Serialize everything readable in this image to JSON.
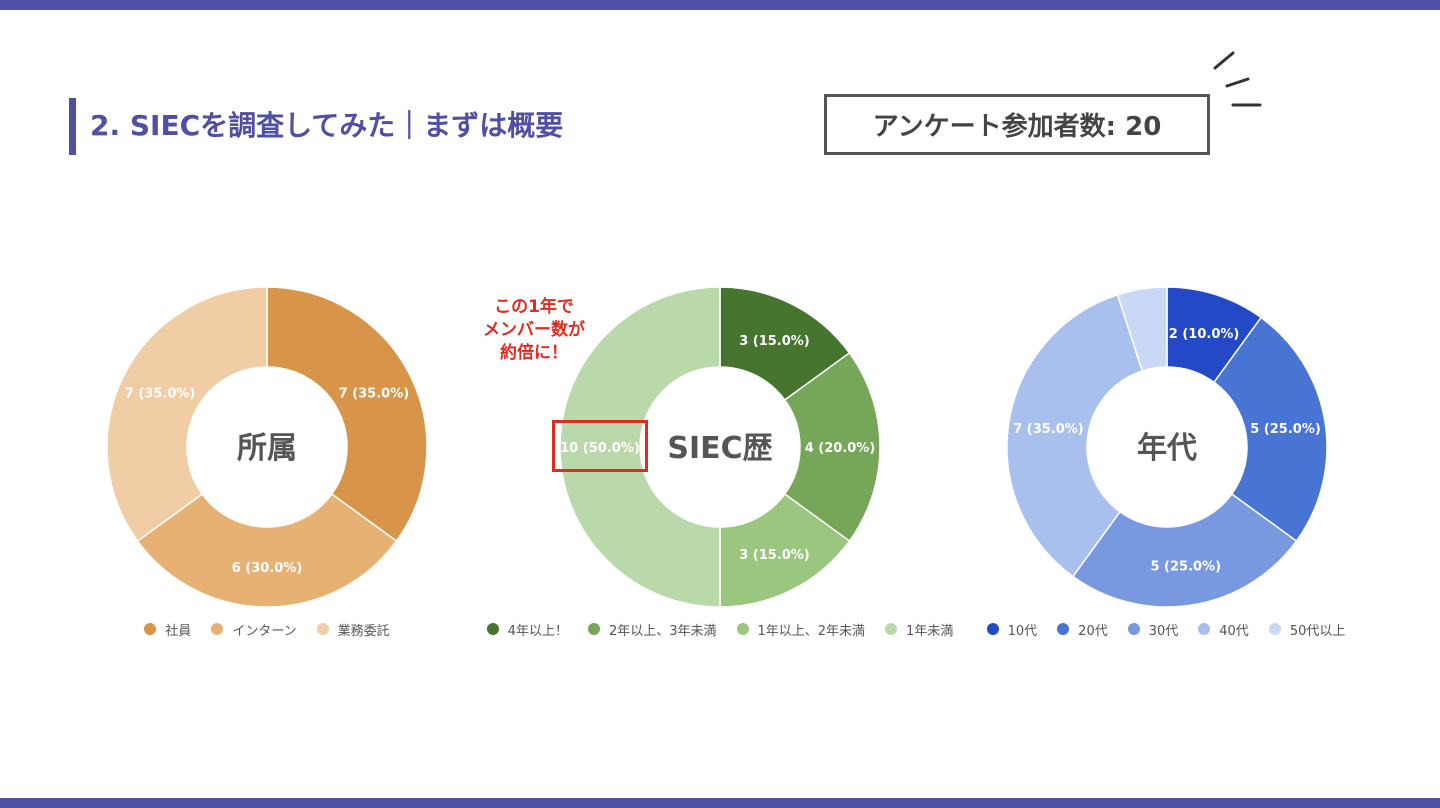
{
  "slide": {
    "title": "2. SIECを調査してみた｜まずは概要",
    "participant_count": "アンケート参加者数: 20",
    "note_lines": [
      "この1年で",
      "メンバー数が",
      "約倍に！"
    ],
    "colors": {
      "accent": "#4f4fa3",
      "note": "#e02b20"
    }
  },
  "chart_data": [
    {
      "type": "pie",
      "donut": true,
      "center_label": "所属",
      "categories": [
        "社員",
        "インターン",
        "業務委託"
      ],
      "values": [
        7,
        6,
        7
      ],
      "data_labels": [
        "7 (35.0%)",
        "6 (30.0%)",
        "7 (35.0%)"
      ],
      "colors": [
        "#d8954a",
        "#e8b174",
        "#f0cda5"
      ],
      "legend_position": "bottom"
    },
    {
      "type": "pie",
      "donut": true,
      "center_label": "SIEC歴",
      "categories": [
        "4年以上！",
        "2年以上、3年未満",
        "1年以上、2年未満",
        "1年未満"
      ],
      "values": [
        3,
        4,
        3,
        10
      ],
      "data_labels": [
        "3 (15.0%)",
        "4 (20.0%)",
        "3 (15.0%)",
        "10 (50.0%)"
      ],
      "colors": [
        "#45752e",
        "#76a758",
        "#9bc680",
        "#b9d9aa"
      ],
      "legend_position": "bottom"
    },
    {
      "type": "pie",
      "donut": true,
      "center_label": "年代",
      "categories": [
        "10代",
        "20代",
        "30代",
        "40代",
        "50代以上"
      ],
      "values": [
        2,
        5,
        5,
        7,
        1
      ],
      "data_labels": [
        "2 (10.0%)",
        "5 (25.0%)",
        "5 (25.0%)",
        "7 (35.0%)",
        ""
      ],
      "colors": [
        "#2349c6",
        "#4874d3",
        "#7899e0",
        "#a9c0ee",
        "#c9d9f5"
      ],
      "legend_position": "bottom"
    }
  ]
}
